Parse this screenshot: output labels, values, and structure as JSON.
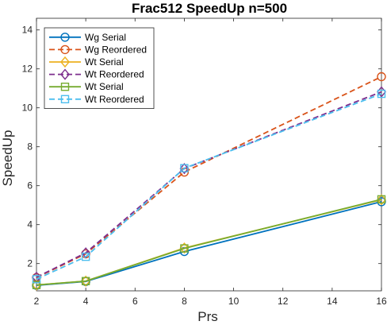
{
  "chart_data": {
    "type": "line",
    "title": "Frac512 SpeedUp n=500",
    "xlabel": "Prs",
    "ylabel": "SpeedUp",
    "x": [
      2,
      4,
      8,
      16
    ],
    "xlim": [
      2,
      16
    ],
    "ylim": [
      0.6,
      14.6
    ],
    "xticks": [
      2,
      4,
      6,
      8,
      10,
      12,
      14,
      16
    ],
    "yticks": [
      2,
      4,
      6,
      8,
      10,
      12,
      14
    ],
    "grid": false,
    "legend_position": "top-left",
    "series": [
      {
        "name": "Wg Serial",
        "values": [
          0.88,
          1.08,
          2.62,
          5.18
        ],
        "color": "#0072BD",
        "dash": "solid",
        "marker": "circle"
      },
      {
        "name": "Wg Reordered",
        "values": [
          1.28,
          2.5,
          6.7,
          11.6
        ],
        "color": "#D95319",
        "dash": "dashed",
        "marker": "circle"
      },
      {
        "name": "Wt Serial",
        "values": [
          0.9,
          1.1,
          2.8,
          5.28
        ],
        "color": "#EDB120",
        "dash": "solid",
        "marker": "diamond"
      },
      {
        "name": "Wt Reordered",
        "values": [
          1.3,
          2.55,
          6.88,
          10.82
        ],
        "color": "#7E2F8E",
        "dash": "dashed",
        "marker": "diamond"
      },
      {
        "name": "Wt Serial",
        "values": [
          0.9,
          1.1,
          2.78,
          5.3
        ],
        "color": "#77AC30",
        "dash": "solid",
        "marker": "square"
      },
      {
        "name": "Wt Reordered",
        "values": [
          1.2,
          2.35,
          6.9,
          10.72
        ],
        "color": "#4DBEEE",
        "dash": "dashed",
        "marker": "square"
      }
    ]
  }
}
